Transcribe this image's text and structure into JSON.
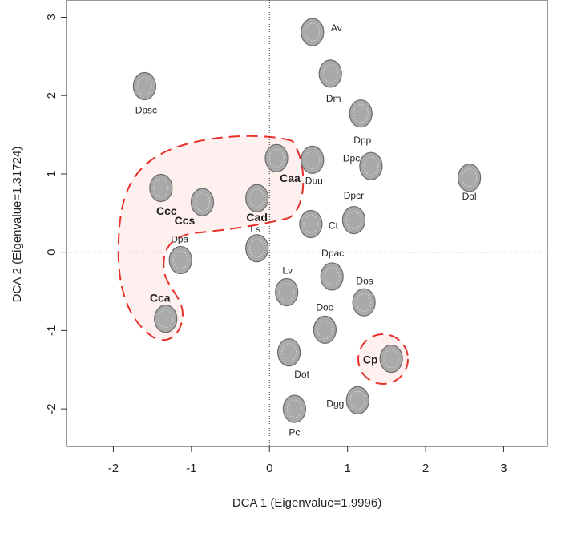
{
  "chart_data": {
    "type": "scatter",
    "xlabel": "DCA 1 (Eigenvalue=1.9996)",
    "ylabel": "DCA 2 (Eigenvalue=1.31724)",
    "xlim": [
      -2.6,
      3.56
    ],
    "ylim": [
      -2.48,
      3.22
    ],
    "xticks": [
      -2,
      -1,
      0,
      1,
      2,
      3
    ],
    "yticks": [
      -2,
      -1,
      0,
      1,
      2,
      3
    ],
    "zero_lines": true,
    "labels": [
      "Av",
      "Dm",
      "Dpsc",
      "Dpp",
      "Dpcl",
      "Dol",
      "Caa",
      "Duu",
      "Ccc",
      "Ccs",
      "Cad",
      "Dpcr",
      "Ct",
      "Ls",
      "Dpa",
      "Dpac",
      "Lv",
      "Dos",
      "Doo",
      "Cca",
      "Dot",
      "Cp",
      "Dgg",
      "Pc"
    ],
    "x": [
      0.55,
      0.78,
      -1.6,
      1.17,
      1.3,
      2.56,
      0.09,
      0.55,
      -1.39,
      -0.86,
      -0.16,
      1.08,
      0.53,
      -0.16,
      -1.14,
      0.8,
      0.22,
      1.21,
      0.71,
      -1.33,
      0.25,
      1.56,
      1.13,
      0.32
    ],
    "y": [
      2.81,
      2.28,
      2.12,
      1.77,
      1.1,
      0.95,
      1.2,
      1.18,
      0.82,
      0.64,
      0.69,
      0.41,
      0.36,
      0.05,
      -0.1,
      -0.31,
      -0.51,
      -0.64,
      -0.99,
      -0.85,
      -1.28,
      -1.36,
      -1.89,
      -2.0
    ],
    "colors": [
      "#222",
      "#222",
      "#222",
      "#222",
      "#222",
      "#222",
      "#e8302a",
      "#222",
      "#e8302a",
      "#e8302a",
      "#e8302a",
      "#222",
      "#222",
      "#222",
      "#222",
      "#222",
      "#222",
      "#222",
      "#222",
      "#e8302a",
      "#222",
      "#e8302a",
      "#222",
      "#222"
    ]
  }
}
